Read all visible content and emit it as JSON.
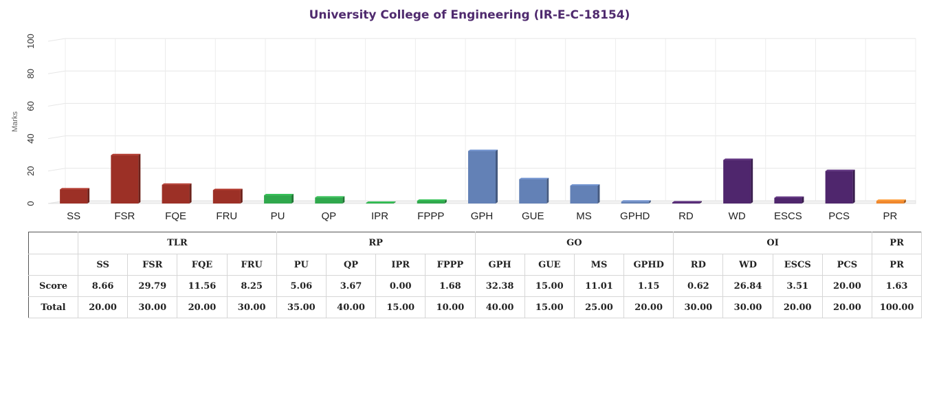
{
  "chart_data": {
    "type": "bar",
    "title": "University College of Engineering (IR-E-C-18154)",
    "ylabel": "Marks",
    "xlabel": "",
    "ylim": [
      0,
      100
    ],
    "yticks": [
      "0",
      "20",
      "40",
      "60",
      "80",
      "100"
    ],
    "grid": true,
    "categories": [
      "SS",
      "FSR",
      "FQE",
      "FRU",
      "PU",
      "QP",
      "IPR",
      "FPPP",
      "GPH",
      "GUE",
      "MS",
      "GPHD",
      "RD",
      "WD",
      "ESCS",
      "PCS",
      "PR"
    ],
    "values": [
      8.66,
      29.79,
      11.56,
      8.25,
      5.06,
      3.67,
      0.0,
      1.68,
      32.38,
      15.0,
      11.01,
      1.15,
      0.62,
      26.84,
      3.51,
      20.0,
      1.63
    ],
    "bar_groups": [
      "TLR",
      "TLR",
      "TLR",
      "TLR",
      "RP",
      "RP",
      "RP",
      "RP",
      "GO",
      "GO",
      "GO",
      "GO",
      "OI",
      "OI",
      "OI",
      "OI",
      "PR"
    ],
    "group_colors": {
      "TLR": "#9c3026",
      "RP": "#2fa84c",
      "GO": "#6381b6",
      "OI": "#4f266d",
      "PR": "#f0862a"
    }
  },
  "table": {
    "groups": [
      {
        "label": "TLR",
        "span": 4
      },
      {
        "label": "RP",
        "span": 4
      },
      {
        "label": "GO",
        "span": 4
      },
      {
        "label": "OI",
        "span": 4
      },
      {
        "label": "PR",
        "span": 1
      }
    ],
    "columns": [
      "SS",
      "FSR",
      "FQE",
      "FRU",
      "PU",
      "QP",
      "IPR",
      "FPPP",
      "GPH",
      "GUE",
      "MS",
      "GPHD",
      "RD",
      "WD",
      "ESCS",
      "PCS",
      "PR"
    ],
    "rows": [
      {
        "label": "Score",
        "values": [
          "8.66",
          "29.79",
          "11.56",
          "8.25",
          "5.06",
          "3.67",
          "0.00",
          "1.68",
          "32.38",
          "15.00",
          "11.01",
          "1.15",
          "0.62",
          "26.84",
          "3.51",
          "20.00",
          "1.63"
        ]
      },
      {
        "label": "Total",
        "values": [
          "20.00",
          "30.00",
          "20.00",
          "30.00",
          "35.00",
          "40.00",
          "15.00",
          "10.00",
          "40.00",
          "15.00",
          "25.00",
          "20.00",
          "30.00",
          "30.00",
          "20.00",
          "20.00",
          "100.00"
        ]
      }
    ]
  }
}
